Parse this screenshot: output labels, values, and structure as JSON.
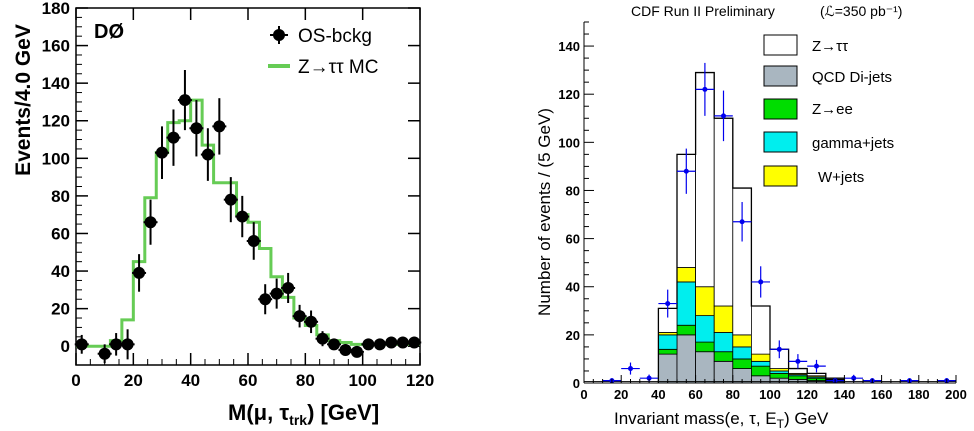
{
  "chart_data": [
    {
      "type": "scatter",
      "experiment_label": "DØ",
      "xlabel": "M(μ, τ",
      "xlabel_sub": "trk",
      "xlabel_tail": ") [GeV]",
      "ylabel": "Events/4.0 GeV",
      "xlim": [
        0,
        120
      ],
      "ylim": [
        -10,
        180
      ],
      "x_ticks": [
        0,
        20,
        40,
        60,
        80,
        100,
        120
      ],
      "y_ticks": [
        0,
        20,
        40,
        60,
        80,
        100,
        120,
        140,
        160,
        180
      ],
      "legend": {
        "placement": "top-right",
        "entries": [
          "OS-bckg",
          "Z→ττ MC"
        ]
      },
      "series": [
        {
          "name": "OS-bckg",
          "style": "points-with-errors",
          "color": "#000000",
          "x": [
            2,
            10,
            14,
            18,
            22,
            26,
            30,
            34,
            38,
            42,
            46,
            50,
            54,
            58,
            62,
            66,
            70,
            74,
            78,
            82,
            86,
            90,
            94,
            98,
            102,
            106,
            110,
            114,
            118
          ],
          "y": [
            1,
            -4,
            1,
            1,
            39,
            66,
            103,
            111,
            131,
            116,
            102,
            117,
            78,
            69,
            56,
            25,
            28,
            31,
            16,
            13,
            4,
            1,
            -2,
            -3,
            1,
            1,
            2,
            2,
            2
          ],
          "err": [
            5,
            5,
            6,
            8,
            10,
            12,
            14,
            15,
            16,
            15,
            14,
            15,
            12,
            11,
            10,
            8,
            8,
            8,
            6,
            6,
            4,
            3,
            3,
            3,
            3,
            3,
            3,
            3,
            3
          ]
        },
        {
          "name": "Z→ττ MC",
          "style": "step",
          "color": "#66cc55",
          "edges": [
            0,
            4,
            8,
            12,
            16,
            20,
            24,
            28,
            32,
            36,
            40,
            44,
            48,
            52,
            56,
            60,
            64,
            68,
            72,
            76,
            80,
            84,
            88,
            92,
            96,
            100,
            104,
            108,
            112,
            116,
            120
          ],
          "values": [
            0,
            0,
            0,
            3,
            14,
            45,
            79,
            103,
            119,
            120,
            131,
            107,
            87,
            87,
            70,
            66,
            52,
            37,
            26,
            15,
            11,
            6,
            3,
            2,
            1,
            1,
            1,
            1,
            1,
            1
          ]
        }
      ]
    },
    {
      "type": "bar",
      "title": "CDF Run II Preliminary",
      "title_lumi": "(ℒ=350 pb⁻¹)",
      "xlabel": "Invariant mass(e, τ, E",
      "xlabel_sub": "T",
      "xlabel_tail": ")  GeV",
      "ylabel": "Number of events / (5 GeV)",
      "xlim": [
        0,
        200
      ],
      "ylim": [
        0,
        150
      ],
      "x_ticks": [
        0,
        20,
        40,
        60,
        80,
        100,
        120,
        140,
        160,
        180,
        200
      ],
      "y_ticks": [
        0,
        20,
        40,
        60,
        80,
        100,
        120,
        140
      ],
      "legend": {
        "placement": "top-right",
        "entries": [
          "Z→ττ",
          "QCD Di-jets",
          "Z→ee",
          "gamma+jets",
          "W+jets"
        ]
      },
      "edges": [
        40,
        50,
        60,
        70,
        80,
        90,
        100,
        110,
        120,
        130,
        140
      ],
      "stack": [
        {
          "name": "QCD Di-jets",
          "color": "#a9b6c0",
          "values": [
            12,
            20,
            13,
            9,
            6,
            3,
            2,
            1.5,
            1,
            0.5
          ]
        },
        {
          "name": "Z→ee",
          "color": "#00dd00",
          "values": [
            2,
            4,
            4,
            4,
            4,
            4,
            2,
            1.5,
            1,
            0.5
          ]
        },
        {
          "name": "gamma+jets",
          "color": "#00eeee",
          "values": [
            6,
            18,
            11,
            8,
            5,
            2,
            1,
            0.5,
            0.5,
            0.3
          ]
        },
        {
          "name": "W+jets",
          "color": "#ffff00",
          "values": [
            1,
            6,
            12,
            11,
            5,
            3,
            1,
            0.5,
            0.5,
            0.2
          ]
        },
        {
          "name": "Z→ττ",
          "color": "#ffffff",
          "values": [
            10,
            47,
            89,
            78,
            61,
            20,
            8,
            2,
            1,
            0.5
          ]
        }
      ],
      "data_points": {
        "color": "#0000ee",
        "x": [
          15,
          25,
          35,
          45,
          55,
          65,
          75,
          85,
          95,
          105,
          115,
          125,
          135,
          145,
          155,
          175,
          195
        ],
        "y": [
          1,
          6,
          2,
          33,
          88,
          122,
          111,
          67,
          42,
          14,
          9,
          7,
          1,
          2,
          1,
          1,
          1
        ],
        "err": [
          1,
          2.5,
          1.5,
          5.8,
          9.4,
          11,
          10.5,
          8.2,
          6.5,
          3.7,
          3,
          2.6,
          1,
          1.4,
          1,
          1,
          1
        ]
      }
    }
  ]
}
